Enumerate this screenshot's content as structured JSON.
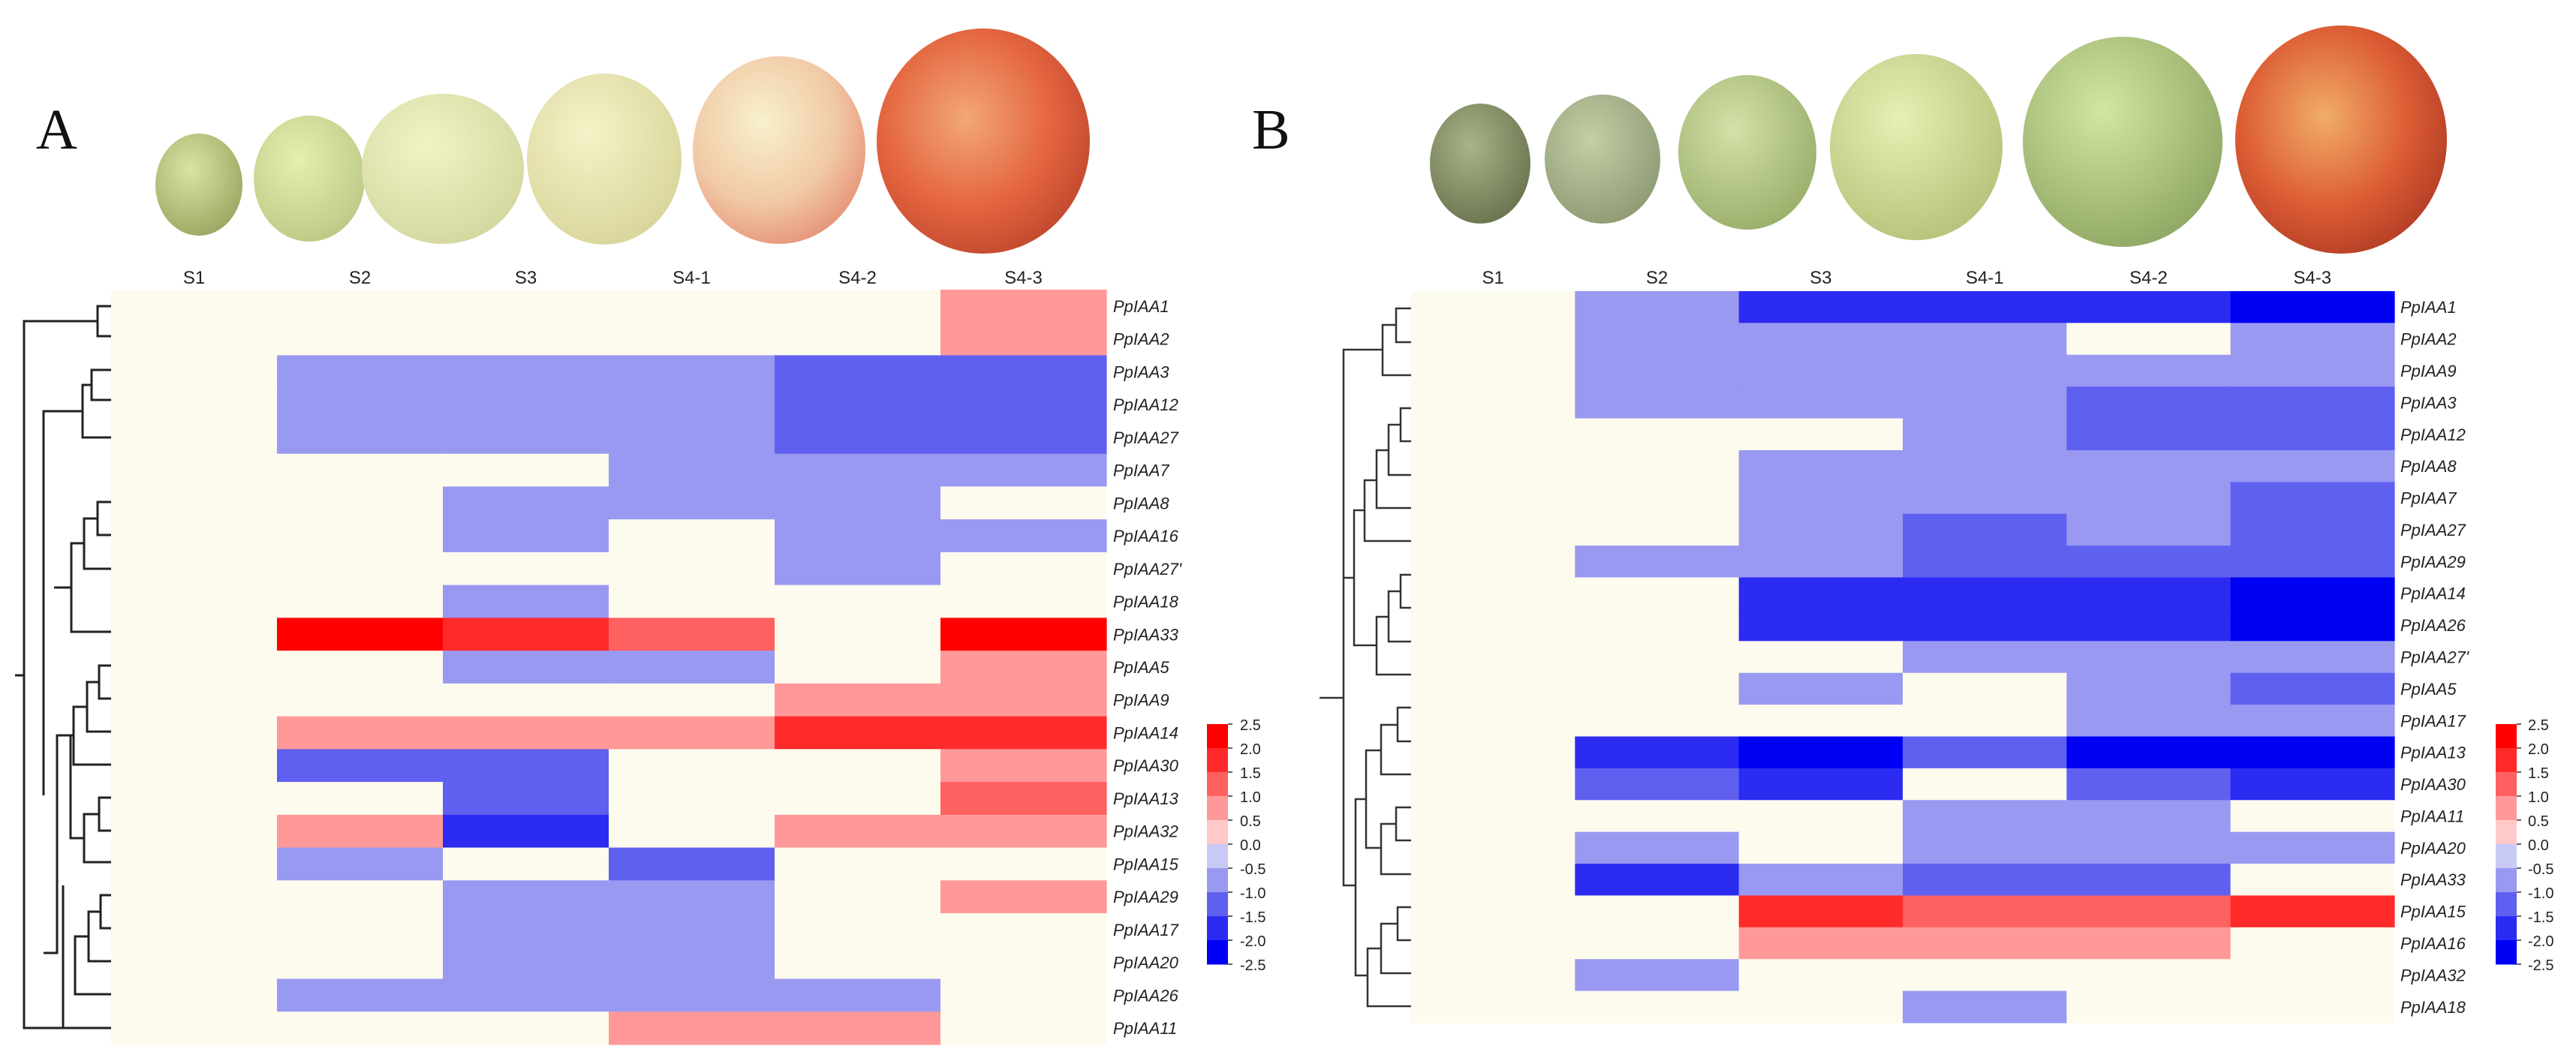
{
  "chart_data": [
    {
      "type": "heatmap",
      "panel": "A",
      "columns": [
        "S1",
        "S2",
        "S3",
        "S4-1",
        "S4-2",
        "S4-3"
      ],
      "rows": [
        "PpIAA1",
        "PpIAA2",
        "PpIAA3",
        "PpIAA12",
        "PpIAA27",
        "PpIAA7",
        "PpIAA8",
        "PpIAA16",
        "PpIAA27'",
        "PpIAA18",
        "PpIAA33",
        "PpIAA5",
        "PpIAA9",
        "PpIAA14",
        "PpIAA30",
        "PpIAA13",
        "PpIAA32",
        "PpIAA15",
        "PpIAA29",
        "PpIAA17",
        "PpIAA20",
        "PpIAA26",
        "PpIAA11"
      ],
      "values": [
        [
          0,
          0,
          0,
          0,
          0,
          0.75
        ],
        [
          0,
          0,
          0,
          0,
          0,
          0.75
        ],
        [
          0,
          -0.75,
          -0.75,
          -0.75,
          -1.25,
          -1.25
        ],
        [
          0,
          -0.75,
          -0.75,
          -0.75,
          -1.25,
          -1.25
        ],
        [
          0,
          -0.75,
          -0.75,
          -0.75,
          -1.25,
          -1.25
        ],
        [
          0,
          0,
          0,
          -0.75,
          -0.75,
          -0.75
        ],
        [
          0,
          0,
          -0.75,
          -0.75,
          -0.75,
          0
        ],
        [
          0,
          0,
          -0.75,
          0,
          -0.75,
          -0.75
        ],
        [
          0,
          0,
          0,
          0,
          -0.75,
          0
        ],
        [
          0,
          0,
          -0.75,
          0,
          0,
          0
        ],
        [
          0,
          2.25,
          1.75,
          1.25,
          0,
          2.25
        ],
        [
          0,
          0,
          -0.75,
          -0.75,
          0,
          0.75
        ],
        [
          0,
          0,
          0,
          0,
          0.75,
          0.75
        ],
        [
          0,
          0.75,
          0.75,
          0.75,
          1.75,
          1.75
        ],
        [
          0,
          -1.25,
          -1.25,
          0,
          0,
          0.75
        ],
        [
          0,
          0,
          -1.25,
          0,
          0,
          1.25
        ],
        [
          0,
          0.75,
          -1.75,
          0,
          0.75,
          0.75
        ],
        [
          0,
          -0.75,
          0,
          -1.25,
          0,
          0
        ],
        [
          0,
          0,
          -0.75,
          -0.75,
          0,
          0.75
        ],
        [
          0,
          0,
          -0.75,
          -0.75,
          0,
          0
        ],
        [
          0,
          0,
          -0.75,
          -0.75,
          0,
          0
        ],
        [
          0,
          -0.75,
          -0.75,
          -0.75,
          -0.75,
          0
        ],
        [
          0,
          0,
          0,
          0.75,
          0.75,
          0
        ]
      ],
      "legend": {
        "ticks": [
          "2.5",
          "2.0",
          "1.5",
          "1.0",
          "0.5",
          "0.0",
          "-0.5",
          "-1.0",
          "-1.5",
          "-2.0",
          "-2.5"
        ],
        "range": [
          -2.5,
          2.5
        ],
        "placement": "right"
      }
    },
    {
      "type": "heatmap",
      "panel": "B",
      "columns": [
        "S1",
        "S2",
        "S3",
        "S4-1",
        "S4-2",
        "S4-3"
      ],
      "rows": [
        "PpIAA1",
        "PpIAA2",
        "PpIAA9",
        "PpIAA3",
        "PpIAA12",
        "PpIAA8",
        "PpIAA7",
        "PpIAA27",
        "PpIAA29",
        "PpIAA14",
        "PpIAA26",
        "PpIAA27'",
        "PpIAA5",
        "PpIAA17",
        "PpIAA13",
        "PpIAA30",
        "PpIAA11",
        "PpIAA20",
        "PpIAA33",
        "PpIAA15",
        "PpIAA16",
        "PpIAA32",
        "PpIAA18"
      ],
      "values": [
        [
          0,
          -0.75,
          -1.75,
          -1.75,
          -1.75,
          -2.25
        ],
        [
          0,
          -0.75,
          -0.75,
          -0.75,
          0,
          -0.75
        ],
        [
          0,
          -0.75,
          -0.75,
          -0.75,
          -0.75,
          -0.75
        ],
        [
          0,
          -0.75,
          -0.75,
          -0.75,
          -1.25,
          -1.25
        ],
        [
          0,
          0,
          0,
          -0.75,
          -1.25,
          -1.25
        ],
        [
          0,
          0,
          -0.75,
          -0.75,
          -0.75,
          -0.75
        ],
        [
          0,
          0,
          -0.75,
          -0.75,
          -0.75,
          -1.25
        ],
        [
          0,
          0,
          -0.75,
          -1.25,
          -0.75,
          -1.25
        ],
        [
          0,
          -0.75,
          -0.75,
          -1.25,
          -1.25,
          -1.25
        ],
        [
          0,
          0,
          -1.75,
          -1.75,
          -1.75,
          -2.25
        ],
        [
          0,
          0,
          -1.75,
          -1.75,
          -1.75,
          -2.25
        ],
        [
          0,
          0,
          0,
          -0.75,
          -0.75,
          -0.75
        ],
        [
          0,
          0,
          -0.75,
          0,
          -0.75,
          -1.25
        ],
        [
          0,
          0,
          0,
          0,
          -0.75,
          -0.75
        ],
        [
          0,
          -1.75,
          -2.25,
          -1.25,
          -2.25,
          -2.25
        ],
        [
          0,
          -1.25,
          -1.75,
          0,
          -1.25,
          -1.75
        ],
        [
          0,
          0,
          0,
          -0.75,
          -0.75,
          0
        ],
        [
          0,
          -0.75,
          0,
          -0.75,
          -0.75,
          -0.75
        ],
        [
          0,
          -1.75,
          -0.75,
          -1.25,
          -1.25,
          0
        ],
        [
          0,
          0,
          1.75,
          1.25,
          1.25,
          1.75
        ],
        [
          0,
          0,
          0.75,
          0.75,
          0.75,
          0
        ],
        [
          0,
          -0.75,
          0,
          0,
          0,
          0
        ],
        [
          0,
          0,
          0,
          -0.75,
          0,
          0
        ]
      ],
      "legend": {
        "ticks": [
          "2.5",
          "2.0",
          "1.5",
          "1.0",
          "0.5",
          "0.0",
          "-0.5",
          "-1.0",
          "-1.5",
          "-2.0",
          "-2.5"
        ],
        "range": [
          -2.5,
          2.5
        ],
        "placement": "right"
      }
    }
  ],
  "panels": {
    "a_letter": "A",
    "b_letter": "B"
  },
  "colors": {
    "neutral": "#fdfbee",
    "pos": [
      "#ffc9c9",
      "#ff9999",
      "#ff6060",
      "#ff2b2b",
      "#ff0000"
    ],
    "neg": [
      "#c9c9f5",
      "#9999f2",
      "#6060f0",
      "#2b2bf2",
      "#0000f5"
    ]
  }
}
